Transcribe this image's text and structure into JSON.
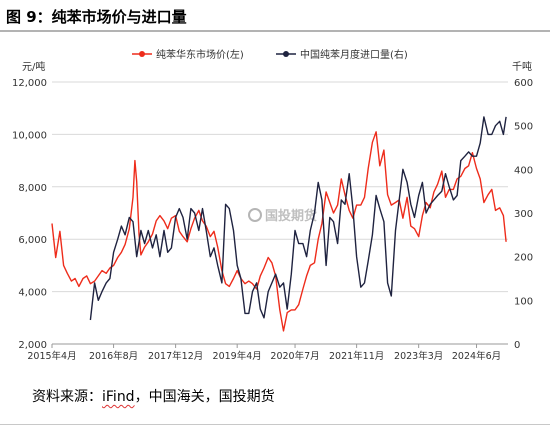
{
  "figure": {
    "title": "图 9：纯苯市场价与进口量",
    "source_prefix": "资料来源：",
    "source_ifind": "iFind",
    "source_rest": "，中国海关，国投期货",
    "watermark": "国投期货"
  },
  "chart_data": {
    "type": "line",
    "title": "",
    "left_axis_unit": "元/吨",
    "right_axis_unit": "千吨",
    "left_ylim": [
      2000,
      12000
    ],
    "right_ylim": [
      0,
      600
    ],
    "left_ticks": [
      "2,000",
      "4,000",
      "6,000",
      "8,000",
      "10,000",
      "12,000"
    ],
    "right_ticks": [
      "0",
      "100",
      "200",
      "300",
      "400",
      "500",
      "600"
    ],
    "x_ticks": [
      "2015年4月",
      "2016年8月",
      "2017年12月",
      "2019年4月",
      "2020年7月",
      "2021年11月",
      "2023年3月",
      "2024年6月"
    ],
    "x_range": [
      2015.25,
      2025.1
    ],
    "x_tick_positions": [
      2015.25,
      2016.58,
      2017.92,
      2019.25,
      2020.5,
      2021.83,
      2023.17,
      2024.42
    ],
    "legend_position": "top-center",
    "grid": "horizontal",
    "series": [
      {
        "name": "纯苯华东市场价(左)",
        "axis": "left",
        "color": "#ee2c1b",
        "x": [
          2015.25,
          2015.33,
          2015.42,
          2015.5,
          2015.58,
          2015.67,
          2015.75,
          2015.83,
          2015.92,
          2016.0,
          2016.08,
          2016.17,
          2016.25,
          2016.33,
          2016.42,
          2016.5,
          2016.58,
          2016.67,
          2016.75,
          2016.83,
          2016.92,
          2017.0,
          2017.04,
          2017.08,
          2017.13,
          2017.17,
          2017.25,
          2017.33,
          2017.42,
          2017.5,
          2017.58,
          2017.67,
          2017.75,
          2017.83,
          2017.92,
          2018.0,
          2018.08,
          2018.17,
          2018.25,
          2018.33,
          2018.42,
          2018.5,
          2018.58,
          2018.67,
          2018.75,
          2018.83,
          2018.92,
          2019.0,
          2019.08,
          2019.17,
          2019.25,
          2019.33,
          2019.42,
          2019.5,
          2019.58,
          2019.67,
          2019.75,
          2019.83,
          2019.92,
          2020.0,
          2020.08,
          2020.17,
          2020.25,
          2020.33,
          2020.42,
          2020.5,
          2020.58,
          2020.67,
          2020.75,
          2020.83,
          2020.92,
          2021.0,
          2021.08,
          2021.17,
          2021.25,
          2021.33,
          2021.42,
          2021.5,
          2021.58,
          2021.67,
          2021.75,
          2021.83,
          2021.92,
          2022.0,
          2022.08,
          2022.17,
          2022.25,
          2022.33,
          2022.42,
          2022.5,
          2022.58,
          2022.67,
          2022.75,
          2022.83,
          2022.92,
          2023.0,
          2023.08,
          2023.17,
          2023.25,
          2023.33,
          2023.42,
          2023.5,
          2023.58,
          2023.67,
          2023.75,
          2023.83,
          2023.92,
          2024.0,
          2024.08,
          2024.17,
          2024.25,
          2024.33,
          2024.42,
          2024.5,
          2024.58,
          2024.67,
          2024.75,
          2024.83,
          2024.92,
          2025.0,
          2025.06
        ],
        "values": [
          6600,
          5300,
          6300,
          5000,
          4700,
          4400,
          4500,
          4200,
          4500,
          4600,
          4300,
          4400,
          4600,
          4800,
          4700,
          4900,
          5000,
          5300,
          5500,
          5800,
          6400,
          7600,
          9000,
          8200,
          6200,
          5400,
          5700,
          5900,
          6200,
          6700,
          6900,
          6700,
          6400,
          6800,
          6900,
          6300,
          6100,
          5900,
          6400,
          6800,
          7100,
          6700,
          6500,
          6100,
          6300,
          5700,
          4800,
          4300,
          4200,
          4500,
          4800,
          4500,
          4300,
          4400,
          4300,
          4100,
          4600,
          4900,
          5300,
          5100,
          4600,
          3300,
          2500,
          3200,
          3300,
          3300,
          3500,
          4100,
          4600,
          5000,
          5100,
          6000,
          6600,
          7800,
          7400,
          7000,
          7300,
          8300,
          7700,
          7100,
          6800,
          7300,
          7300,
          7600,
          8700,
          9700,
          10100,
          8800,
          9400,
          7700,
          7300,
          7400,
          7500,
          6800,
          7600,
          6500,
          6400,
          6100,
          6900,
          7400,
          7200,
          7800,
          8100,
          8600,
          7600,
          7900,
          7900,
          8300,
          8400,
          8700,
          8800,
          9300,
          8700,
          8300,
          7400,
          7700,
          7900,
          7100,
          7200,
          6900,
          5900
        ]
      },
      {
        "name": "中国纯苯月度进口量(右)",
        "axis": "right",
        "color": "#1f2340",
        "x": [
          2016.08,
          2016.17,
          2016.25,
          2016.33,
          2016.42,
          2016.5,
          2016.58,
          2016.67,
          2016.75,
          2016.83,
          2016.92,
          2017.0,
          2017.08,
          2017.17,
          2017.25,
          2017.33,
          2017.42,
          2017.5,
          2017.58,
          2017.67,
          2017.75,
          2017.83,
          2017.92,
          2018.0,
          2018.08,
          2018.17,
          2018.25,
          2018.33,
          2018.42,
          2018.5,
          2018.58,
          2018.67,
          2018.75,
          2018.83,
          2018.92,
          2019.0,
          2019.08,
          2019.17,
          2019.25,
          2019.33,
          2019.42,
          2019.5,
          2019.58,
          2019.67,
          2019.75,
          2019.83,
          2019.92,
          2020.0,
          2020.08,
          2020.17,
          2020.25,
          2020.33,
          2020.42,
          2020.5,
          2020.58,
          2020.67,
          2020.75,
          2020.83,
          2020.92,
          2021.0,
          2021.08,
          2021.17,
          2021.25,
          2021.33,
          2021.42,
          2021.5,
          2021.58,
          2021.67,
          2021.75,
          2021.83,
          2021.92,
          2022.0,
          2022.08,
          2022.17,
          2022.25,
          2022.33,
          2022.42,
          2022.5,
          2022.58,
          2022.67,
          2022.75,
          2022.83,
          2022.92,
          2023.0,
          2023.08,
          2023.17,
          2023.25,
          2023.33,
          2023.42,
          2023.5,
          2023.58,
          2023.67,
          2023.75,
          2023.83,
          2023.92,
          2024.0,
          2024.08,
          2024.17,
          2024.25,
          2024.33,
          2024.42,
          2024.5,
          2024.58,
          2024.67,
          2024.75,
          2024.83,
          2024.92,
          2025.0,
          2025.06
        ],
        "values": [
          55,
          140,
          100,
          120,
          140,
          150,
          210,
          240,
          270,
          250,
          290,
          280,
          200,
          260,
          230,
          260,
          220,
          250,
          200,
          260,
          210,
          220,
          290,
          310,
          290,
          240,
          310,
          300,
          260,
          310,
          260,
          200,
          220,
          180,
          140,
          320,
          310,
          260,
          180,
          150,
          70,
          70,
          120,
          140,
          80,
          60,
          120,
          140,
          160,
          130,
          140,
          80,
          160,
          260,
          230,
          230,
          200,
          260,
          300,
          370,
          330,
          180,
          290,
          280,
          230,
          330,
          320,
          390,
          310,
          200,
          130,
          140,
          190,
          250,
          340,
          310,
          280,
          140,
          110,
          260,
          330,
          400,
          370,
          320,
          290,
          340,
          370,
          300,
          320,
          330,
          340,
          350,
          390,
          360,
          330,
          340,
          420,
          430,
          440,
          430,
          430,
          460,
          520,
          480,
          480,
          500,
          510,
          480,
          520
        ]
      }
    ]
  }
}
